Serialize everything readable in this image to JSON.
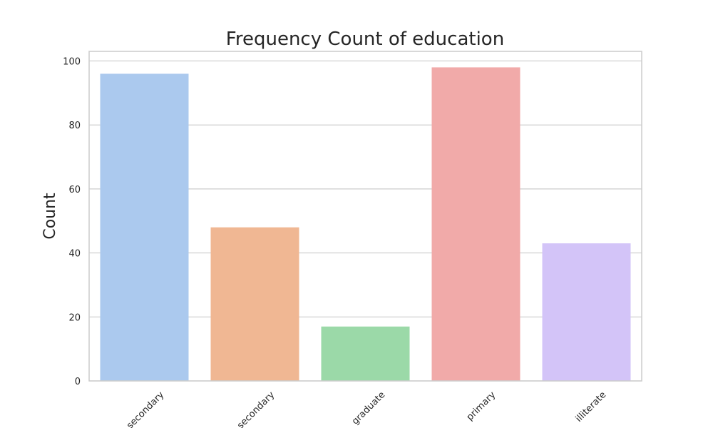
{
  "chart_data": {
    "type": "bar",
    "title": "Frequency Count of education",
    "xlabel": "",
    "ylabel": "Count",
    "categories": [
      "secondary",
      "secondary",
      "graduate",
      "primary",
      "illiterate"
    ],
    "values": [
      96,
      48,
      17,
      98,
      43
    ],
    "colors": [
      "#abc9ee",
      "#f0b793",
      "#9bd9a8",
      "#f1aaa9",
      "#d3c4f8"
    ],
    "ylim": [
      0,
      103
    ],
    "yticks": [
      0,
      20,
      40,
      60,
      80,
      100
    ],
    "grid": true,
    "xtick_rotation": -45
  }
}
